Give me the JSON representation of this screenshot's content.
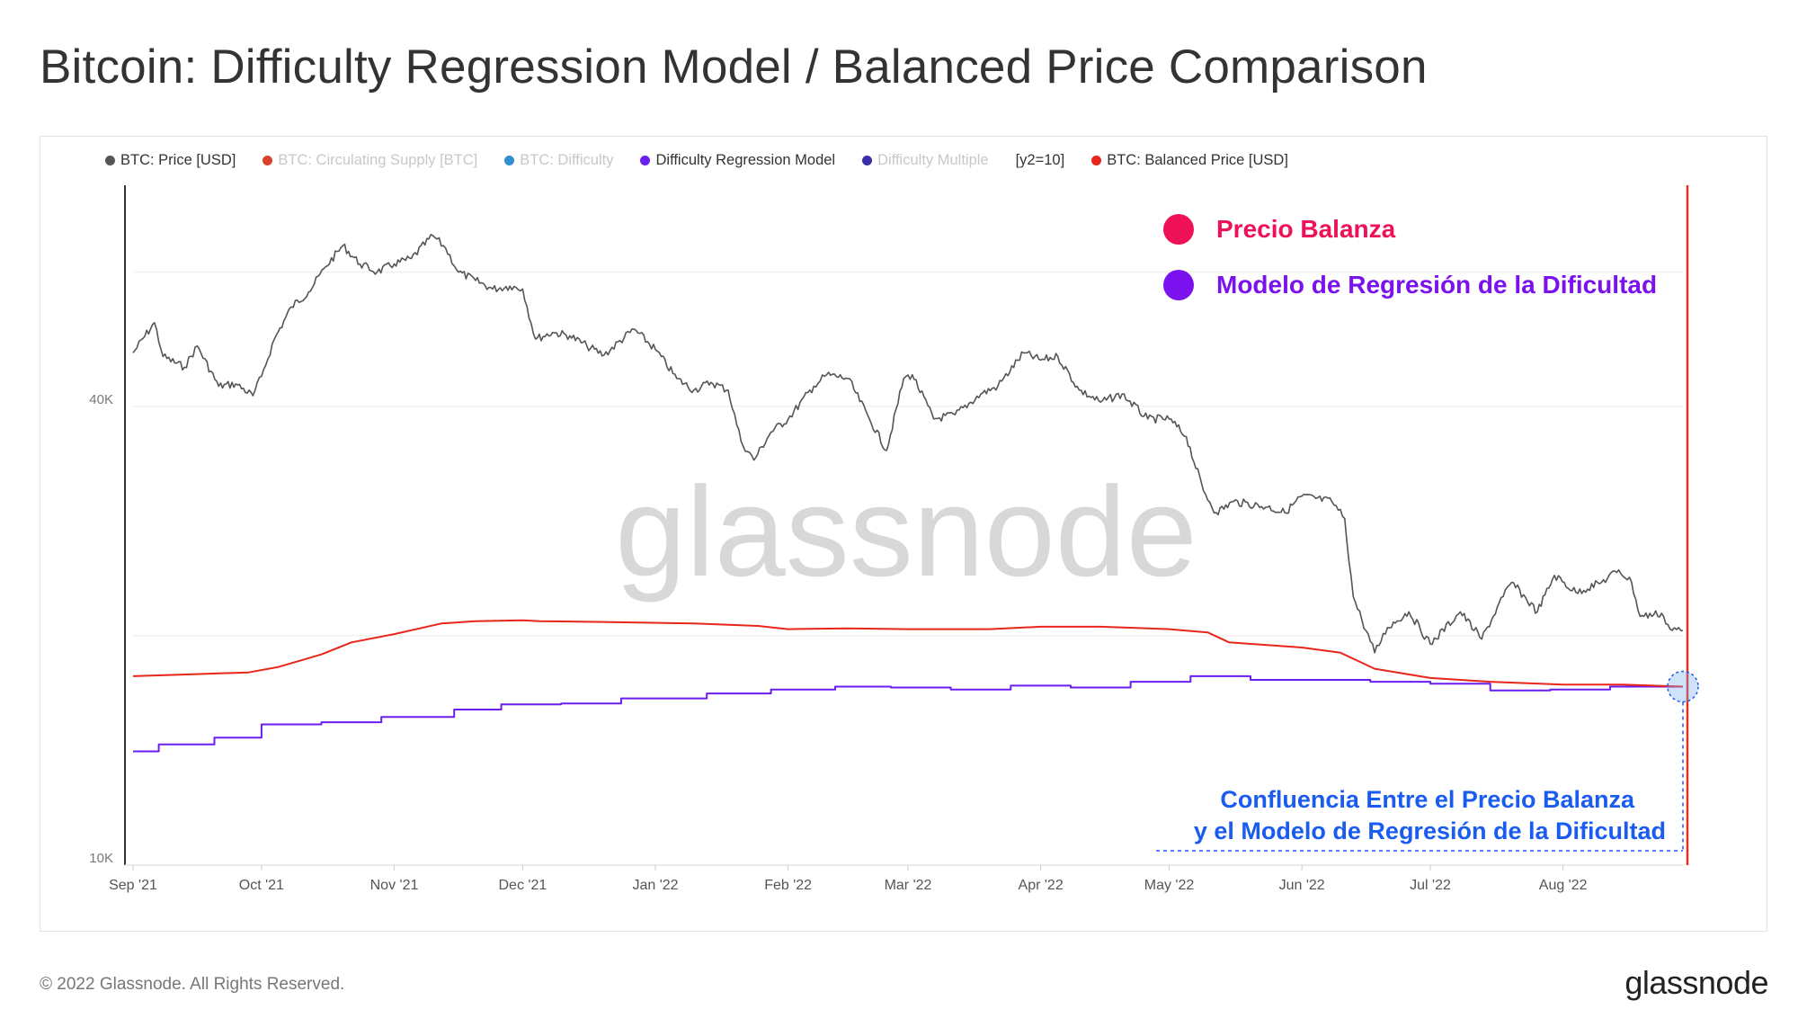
{
  "page": {
    "title": "Bitcoin: Difficulty Regression Model / Balanced Price Comparison",
    "copyright": "© 2022 Glassnode. All Rights Reserved.",
    "brand": "glassnode",
    "watermark": "glassnode"
  },
  "legend": {
    "items": [
      {
        "label": "BTC: Price [USD]",
        "color": "#555555",
        "faded": false
      },
      {
        "label": "BTC: Circulating Supply [BTC]",
        "color": "#d9432b",
        "faded": true
      },
      {
        "label": "BTC: Difficulty",
        "color": "#2f8fd0",
        "faded": true
      },
      {
        "label": "Difficulty Regression Model",
        "color": "#6a1ef0",
        "faded": false
      },
      {
        "label": "Difficulty Multiple",
        "color": "#3a2ea8",
        "faded": true
      }
    ],
    "y2_label": "[y2=10]",
    "balanced": {
      "label": "BTC: Balanced Price [USD]",
      "color": "#e8261c"
    }
  },
  "annotations": {
    "precio_balanza": {
      "text": "Precio Balanza",
      "color": "#ee1157"
    },
    "modelo_regresion": {
      "text": "Modelo de Regresión de la Dificultad",
      "color": "#7a11ee"
    },
    "confluence_line1": "Confluencia Entre el Precio Balanza",
    "confluence_line2": "y el Modelo de Regresión de la Dificultad",
    "confluence_color": "#1a5cf0"
  },
  "chart_data": {
    "type": "line",
    "y_scale": "log",
    "ylim": [
      10000,
      78000
    ],
    "y_ticks": [
      {
        "value": 40000,
        "label": "40K"
      },
      {
        "value": 10000,
        "label": "10K"
      }
    ],
    "x_ticks": [
      "Sep '21",
      "Oct '21",
      "Nov '21",
      "Dec '21",
      "Jan '22",
      "Feb '22",
      "Mar '22",
      "Apr '22",
      "May '22",
      "Jun '22",
      "Jul '22",
      "Aug '22"
    ],
    "xlim": [
      "2021-09-01",
      "2022-08-29"
    ],
    "series": [
      {
        "name": "BTC: Price [USD]",
        "color": "#555555",
        "points": [
          [
            "2021-09-01",
            47000
          ],
          [
            "2021-09-06",
            51500
          ],
          [
            "2021-09-08",
            46500
          ],
          [
            "2021-09-13",
            45000
          ],
          [
            "2021-09-16",
            48000
          ],
          [
            "2021-09-21",
            42500
          ],
          [
            "2021-09-25",
            42800
          ],
          [
            "2021-09-29",
            41300
          ],
          [
            "2021-10-01",
            43800
          ],
          [
            "2021-10-04",
            49000
          ],
          [
            "2021-10-08",
            54000
          ],
          [
            "2021-10-12",
            56500
          ],
          [
            "2021-10-16",
            61000
          ],
          [
            "2021-10-20",
            65000
          ],
          [
            "2021-10-24",
            61500
          ],
          [
            "2021-10-28",
            60000
          ],
          [
            "2021-11-01",
            61500
          ],
          [
            "2021-11-05",
            62500
          ],
          [
            "2021-11-10",
            67000
          ],
          [
            "2021-11-13",
            64500
          ],
          [
            "2021-11-16",
            60000
          ],
          [
            "2021-11-20",
            58500
          ],
          [
            "2021-11-24",
            57000
          ],
          [
            "2021-11-28",
            57500
          ],
          [
            "2021-12-01",
            57000
          ],
          [
            "2021-12-04",
            49000
          ],
          [
            "2021-12-08",
            50000
          ],
          [
            "2021-12-12",
            49500
          ],
          [
            "2021-12-16",
            48000
          ],
          [
            "2021-12-20",
            46700
          ],
          [
            "2021-12-27",
            50500
          ],
          [
            "2022-01-01",
            47500
          ],
          [
            "2022-01-06",
            43500
          ],
          [
            "2022-01-10",
            42000
          ],
          [
            "2022-01-14",
            43000
          ],
          [
            "2022-01-18",
            42000
          ],
          [
            "2022-01-21",
            36000
          ],
          [
            "2022-01-24",
            34000
          ],
          [
            "2022-01-28",
            37000
          ],
          [
            "2022-02-01",
            38500
          ],
          [
            "2022-02-07",
            42500
          ],
          [
            "2022-02-10",
            44000
          ],
          [
            "2022-02-15",
            43500
          ],
          [
            "2022-02-20",
            38500
          ],
          [
            "2022-02-24",
            35000
          ],
          [
            "2022-02-28",
            43500
          ],
          [
            "2022-03-02",
            44000
          ],
          [
            "2022-03-07",
            38500
          ],
          [
            "2022-03-12",
            39000
          ],
          [
            "2022-03-18",
            41500
          ],
          [
            "2022-03-22",
            42500
          ],
          [
            "2022-03-28",
            47000
          ],
          [
            "2022-04-01",
            46000
          ],
          [
            "2022-04-05",
            46500
          ],
          [
            "2022-04-10",
            42000
          ],
          [
            "2022-04-15",
            40500
          ],
          [
            "2022-04-20",
            41500
          ],
          [
            "2022-04-26",
            38500
          ],
          [
            "2022-05-01",
            38500
          ],
          [
            "2022-05-05",
            36500
          ],
          [
            "2022-05-09",
            31000
          ],
          [
            "2022-05-12",
            29000
          ],
          [
            "2022-05-16",
            30000
          ],
          [
            "2022-05-24",
            29500
          ],
          [
            "2022-05-28",
            29000
          ],
          [
            "2022-06-01",
            30500
          ],
          [
            "2022-06-08",
            30000
          ],
          [
            "2022-06-11",
            28500
          ],
          [
            "2022-06-13",
            22500
          ],
          [
            "2022-06-15",
            21000
          ],
          [
            "2022-06-18",
            19000
          ],
          [
            "2022-06-21",
            20500
          ],
          [
            "2022-06-26",
            21500
          ],
          [
            "2022-07-01",
            19500
          ],
          [
            "2022-07-08",
            21500
          ],
          [
            "2022-07-13",
            19800
          ],
          [
            "2022-07-18",
            22500
          ],
          [
            "2022-07-20",
            23500
          ],
          [
            "2022-07-26",
            21500
          ],
          [
            "2022-07-30",
            24000
          ],
          [
            "2022-08-04",
            22800
          ],
          [
            "2022-08-10",
            23500
          ],
          [
            "2022-08-14",
            24400
          ],
          [
            "2022-08-17",
            23500
          ],
          [
            "2022-08-19",
            21200
          ],
          [
            "2022-08-24",
            21400
          ],
          [
            "2022-08-26",
            20400
          ],
          [
            "2022-08-29",
            20300
          ]
        ]
      },
      {
        "name": "Difficulty Regression Model",
        "color": "#6a1ef0",
        "points": [
          [
            "2021-09-01",
            14100
          ],
          [
            "2021-09-07",
            14400
          ],
          [
            "2021-09-20",
            14700
          ],
          [
            "2021-10-01",
            15300
          ],
          [
            "2021-10-15",
            15400
          ],
          [
            "2021-10-29",
            15650
          ],
          [
            "2021-11-15",
            16000
          ],
          [
            "2021-11-26",
            16250
          ],
          [
            "2021-12-10",
            16300
          ],
          [
            "2021-12-24",
            16550
          ],
          [
            "2022-01-13",
            16800
          ],
          [
            "2022-01-28",
            17000
          ],
          [
            "2022-02-12",
            17150
          ],
          [
            "2022-02-25",
            17100
          ],
          [
            "2022-03-11",
            17000
          ],
          [
            "2022-03-25",
            17200
          ],
          [
            "2022-04-08",
            17100
          ],
          [
            "2022-04-22",
            17400
          ],
          [
            "2022-05-06",
            17700
          ],
          [
            "2022-05-20",
            17500
          ],
          [
            "2022-06-03",
            17500
          ],
          [
            "2022-06-17",
            17400
          ],
          [
            "2022-07-01",
            17300
          ],
          [
            "2022-07-15",
            16950
          ],
          [
            "2022-07-29",
            17000
          ],
          [
            "2022-08-12",
            17150
          ],
          [
            "2022-08-29",
            17150
          ]
        ],
        "step": true
      },
      {
        "name": "BTC: Balanced Price [USD]",
        "color": "#e8261c",
        "points": [
          [
            "2021-09-01",
            17700
          ],
          [
            "2021-09-15",
            17800
          ],
          [
            "2021-09-28",
            17900
          ],
          [
            "2021-10-05",
            18200
          ],
          [
            "2021-10-15",
            18900
          ],
          [
            "2021-10-22",
            19600
          ],
          [
            "2021-11-01",
            20100
          ],
          [
            "2021-11-12",
            20750
          ],
          [
            "2021-11-20",
            20900
          ],
          [
            "2021-12-01",
            20950
          ],
          [
            "2021-12-05",
            20900
          ],
          [
            "2021-12-20",
            20850
          ],
          [
            "2022-01-10",
            20750
          ],
          [
            "2022-01-25",
            20600
          ],
          [
            "2022-02-01",
            20400
          ],
          [
            "2022-02-15",
            20450
          ],
          [
            "2022-03-01",
            20400
          ],
          [
            "2022-03-20",
            20400
          ],
          [
            "2022-04-01",
            20550
          ],
          [
            "2022-04-15",
            20550
          ],
          [
            "2022-05-01",
            20400
          ],
          [
            "2022-05-10",
            20200
          ],
          [
            "2022-05-15",
            19600
          ],
          [
            "2022-06-01",
            19300
          ],
          [
            "2022-06-10",
            19000
          ],
          [
            "2022-06-18",
            18100
          ],
          [
            "2022-07-01",
            17600
          ],
          [
            "2022-07-15",
            17400
          ],
          [
            "2022-08-01",
            17250
          ],
          [
            "2022-08-15",
            17250
          ],
          [
            "2022-08-29",
            17150
          ]
        ]
      }
    ],
    "highlight_point": {
      "date": "2022-08-29",
      "value": 17150
    }
  }
}
